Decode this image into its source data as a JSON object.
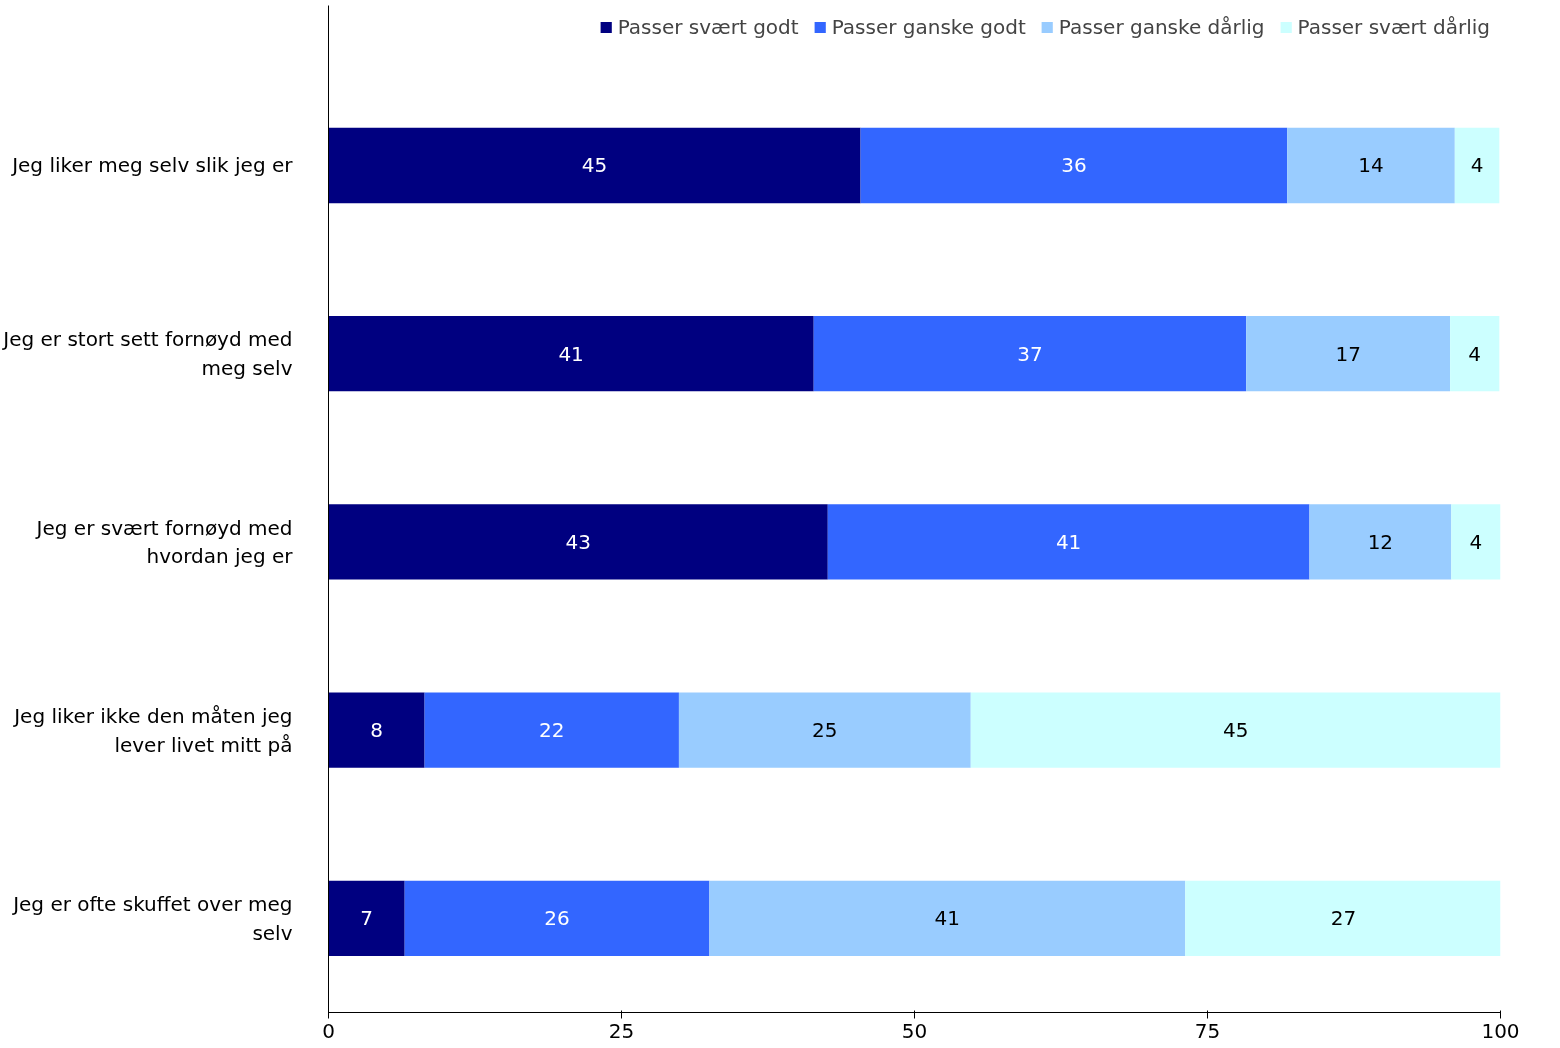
{
  "chart_data": {
    "type": "bar",
    "orientation": "horizontal",
    "stacked": true,
    "categories": [
      "Jeg liker meg selv slik jeg er",
      "Jeg er stort sett fornøyd med meg selv",
      "Jeg er svært fornøyd med hvordan jeg er",
      "Jeg liker ikke den måten jeg lever livet mitt på",
      "Jeg er ofte skuffet over meg selv"
    ],
    "series": [
      {
        "name": "Passer svært godt",
        "color": "#000080",
        "values": [
          45.4,
          41.4,
          42.6,
          8.2,
          6.5
        ],
        "value_labels": [
          "45",
          "41",
          "43",
          "8",
          "7"
        ]
      },
      {
        "name": "Passer ganske godt",
        "color": "#3366ff",
        "values": [
          36.4,
          36.9,
          41.1,
          21.7,
          26.0
        ],
        "value_labels": [
          "36",
          "37",
          "41",
          "22",
          "26"
        ]
      },
      {
        "name": "Passer ganske dårlig",
        "color": "#99ccff",
        "values": [
          14.3,
          17.4,
          12.1,
          24.9,
          40.6
        ],
        "value_labels": [
          "14",
          "17",
          "12",
          "25",
          "41"
        ]
      },
      {
        "name": "Passer svært dårlig",
        "color": "#ccffff",
        "values": [
          3.8,
          4.2,
          4.2,
          45.2,
          27.0
        ],
        "value_labels": [
          "4",
          "4",
          "4",
          "45",
          "27"
        ]
      }
    ],
    "xlim": [
      0,
      100
    ],
    "xticks": [
      0,
      25,
      50,
      75,
      100
    ],
    "legend": "top",
    "grid": false
  }
}
